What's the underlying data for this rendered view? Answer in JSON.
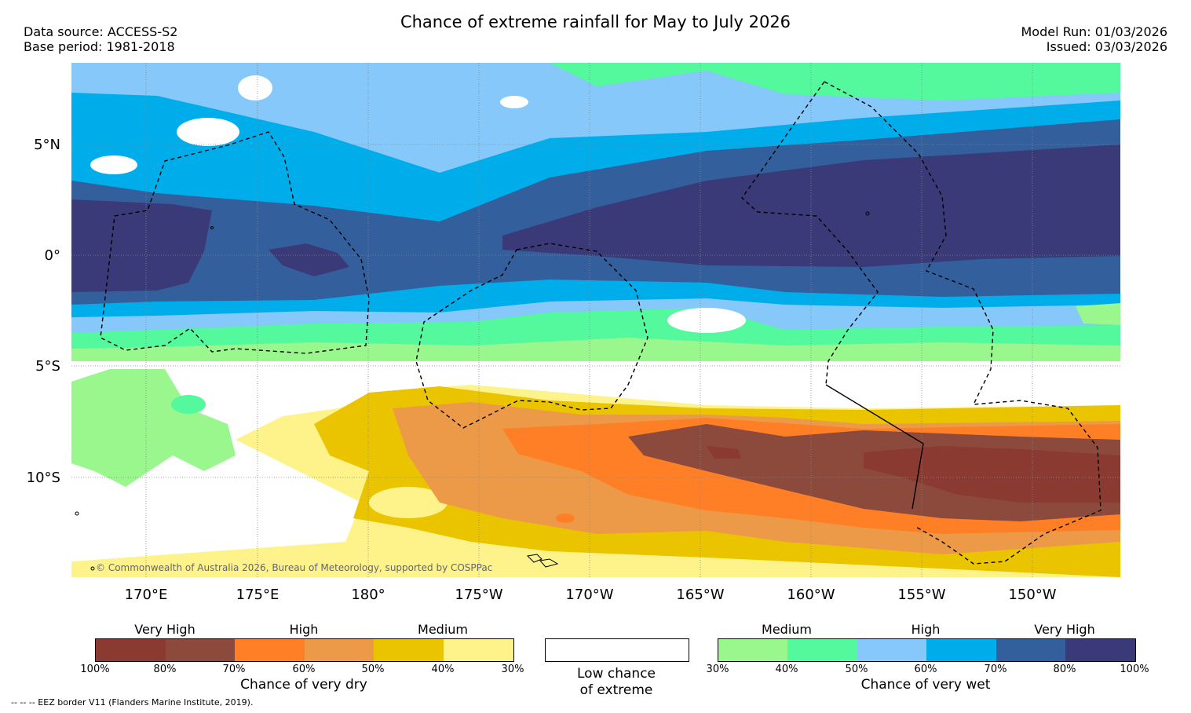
{
  "title": "Chance of extreme rainfall for May to July 2026",
  "meta": {
    "data_source": "Data source: ACCESS-S2",
    "base_period": "Base period: 1981-2018",
    "model_run": "Model Run: 01/03/2026",
    "issued": "Issued: 03/03/2026"
  },
  "map": {
    "lat_labels": [
      "5°N",
      "0°",
      "5°S",
      "10°S"
    ],
    "lon_labels": [
      "170°E",
      "175°E",
      "180°",
      "175°W",
      "170°W",
      "165°W",
      "160°W",
      "155°W",
      "150°W"
    ],
    "copyright": "© Commonwealth of Australia 2026, Bureau of Meteorology, supported by COSPPac"
  },
  "colors": {
    "dry_100_80": "#8b3a32",
    "dry_80_70": "#8b4a3c",
    "dry_70_60": "#ff7f27",
    "dry_60_50": "#ec9a48",
    "dry_50_40": "#ebc400",
    "dry_40_30": "#fef38a",
    "low": "#ffffff",
    "wet_30_40": "#99f78e",
    "wet_40_50": "#53f99c",
    "wet_50_60": "#85c8f9",
    "wet_60_70": "#00adeb",
    "wet_70_80": "#33609c",
    "wet_80_100": "#3b3a78"
  },
  "legend_dry": {
    "categories": [
      "Very High",
      "High",
      "Medium"
    ],
    "ticks": [
      "100%",
      "80%",
      "70%",
      "60%",
      "50%",
      "40%",
      "30%"
    ],
    "title": "Chance of very dry"
  },
  "legend_low": {
    "line1": "Low chance",
    "line2": "of extreme"
  },
  "legend_wet": {
    "categories": [
      "Medium",
      "High",
      "Very High"
    ],
    "ticks": [
      "30%",
      "40%",
      "50%",
      "60%",
      "70%",
      "80%",
      "100%"
    ],
    "title": "Chance of very wet"
  },
  "footnote": "-- -- -- EEZ border V11 (Flanders Marine Institute, 2019)."
}
